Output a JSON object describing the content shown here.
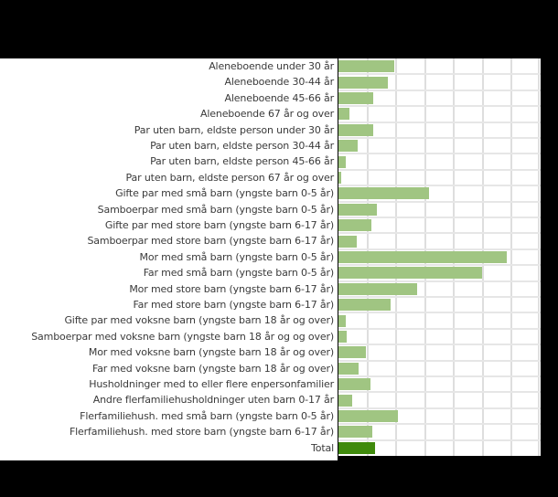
{
  "chart_data": {
    "type": "bar",
    "orientation": "horizontal",
    "title": "",
    "xlabel": "",
    "ylabel": "",
    "units": "relative (gridline intervals; no axis tick labels visible)",
    "grid": true,
    "gridline_count": 7,
    "xlim": [
      0,
      7
    ],
    "legend": null,
    "colors": {
      "bar": "#a0c582",
      "total_bar": "#3f8a0c",
      "grid": "#dedede"
    },
    "categories": [
      "Aleneboende  under 30 år",
      "Aleneboende  30-44 år",
      "Aleneboende  45-66 år",
      "Aleneboende  67 år og over",
      "Par uten barn, eldste person  under 30 år",
      "Par uten barn, eldste person  30-44 år",
      "Par uten barn, eldste person  45-66 år",
      "Par uten barn, eldste person  67 år og over",
      "Gifte par med små barn (yngste barn 0-5 år)",
      "Samboerpar  med små barn (yngste barn 0-5 år)",
      "Gifte par med store barn (yngste barn 6-17 år)",
      "Samboerpar  med store barn (yngste barn 6-17 år)",
      "Mor med små barn (yngste barn 0-5 år)",
      "Far med små barn (yngste barn 0-5 år)",
      "Mor med store barn (yngste barn 6-17 år)",
      "Far med store barn (yngste barn 6-17 år)",
      "Gifte par med voksne barn (yngste barn 18 år og over)",
      "Samboerpar  med voksne barn (yngste barn 18 år og og over)",
      "Mor med voksne barn (yngste barn 18 år og over)",
      "Far med voksne barn (yngste barn 18 år og over)",
      "Husholdninger  med to eller flere  enpersonfamilier",
      "Andre flerfamiliehusholdninger  uten barn 0-17 år",
      "Flerfamiliehush.  med små barn (yngste barn 0-5 år)",
      "Flerfamiliehush.  med store barn (yngste barn 6-17 år)",
      "Total"
    ],
    "values": [
      1.94,
      1.7,
      1.21,
      0.37,
      1.21,
      0.67,
      0.24,
      0.1,
      3.15,
      1.34,
      1.15,
      0.64,
      5.84,
      4.97,
      2.73,
      1.8,
      0.24,
      0.28,
      0.95,
      0.7,
      1.12,
      0.49,
      2.06,
      1.18,
      1.28
    ],
    "highlight_index": 24
  }
}
